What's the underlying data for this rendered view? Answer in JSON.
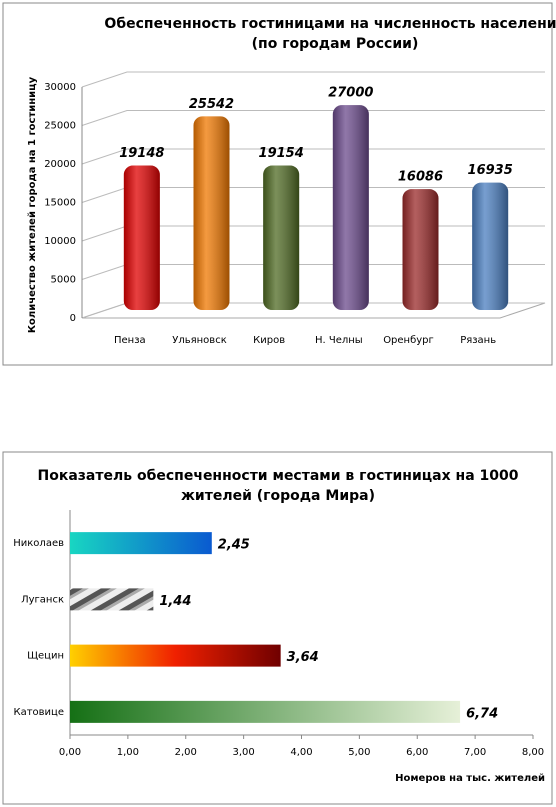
{
  "chart_data": [
    {
      "type": "bar",
      "title": "Обеспеченность гостиницами на численность населения\n(по городам  России)",
      "ylabel": "Количество жителей города на 1 гостиницу",
      "categories": [
        "Пенза",
        "Ульяновск",
        "Киров",
        "Н. Челны",
        "Оренбург",
        "Рязань"
      ],
      "values": [
        19148,
        25542,
        19154,
        27000,
        16086,
        16935
      ],
      "colors": [
        "#e00000",
        "#f07800",
        "#4f6a23",
        "#6b4a8c",
        "#9a2a2a",
        "#4a7ec0"
      ],
      "ylim": [
        0,
        30000
      ],
      "yticks": [
        0,
        5000,
        10000,
        15000,
        20000,
        25000,
        30000
      ],
      "grid": true
    },
    {
      "type": "barh",
      "title": "Показатель обеспеченности местами в гостиницах на 1000\nжителей (города Мира)",
      "xlabel": "Номеров на тыс. жителей",
      "categories": [
        "Николаев",
        "Луганск",
        "Щецин",
        "Катовице"
      ],
      "values": [
        2.45,
        1.44,
        3.64,
        6.74
      ],
      "value_labels": [
        "2,45",
        "1,44",
        "3,64",
        "6,74"
      ],
      "xlim": [
        0,
        8
      ],
      "xticks": [
        {
          "value": 0,
          "label": "0,00"
        },
        {
          "value": 1,
          "label": "1,00"
        },
        {
          "value": 2,
          "label": "2,00"
        },
        {
          "value": 3,
          "label": "3,00"
        },
        {
          "value": 4,
          "label": "4,00"
        },
        {
          "value": 5,
          "label": "5,00"
        },
        {
          "value": 6,
          "label": "6,00"
        },
        {
          "value": 7,
          "label": "7,00"
        },
        {
          "value": 8,
          "label": "8,00"
        }
      ],
      "grid": false
    }
  ]
}
